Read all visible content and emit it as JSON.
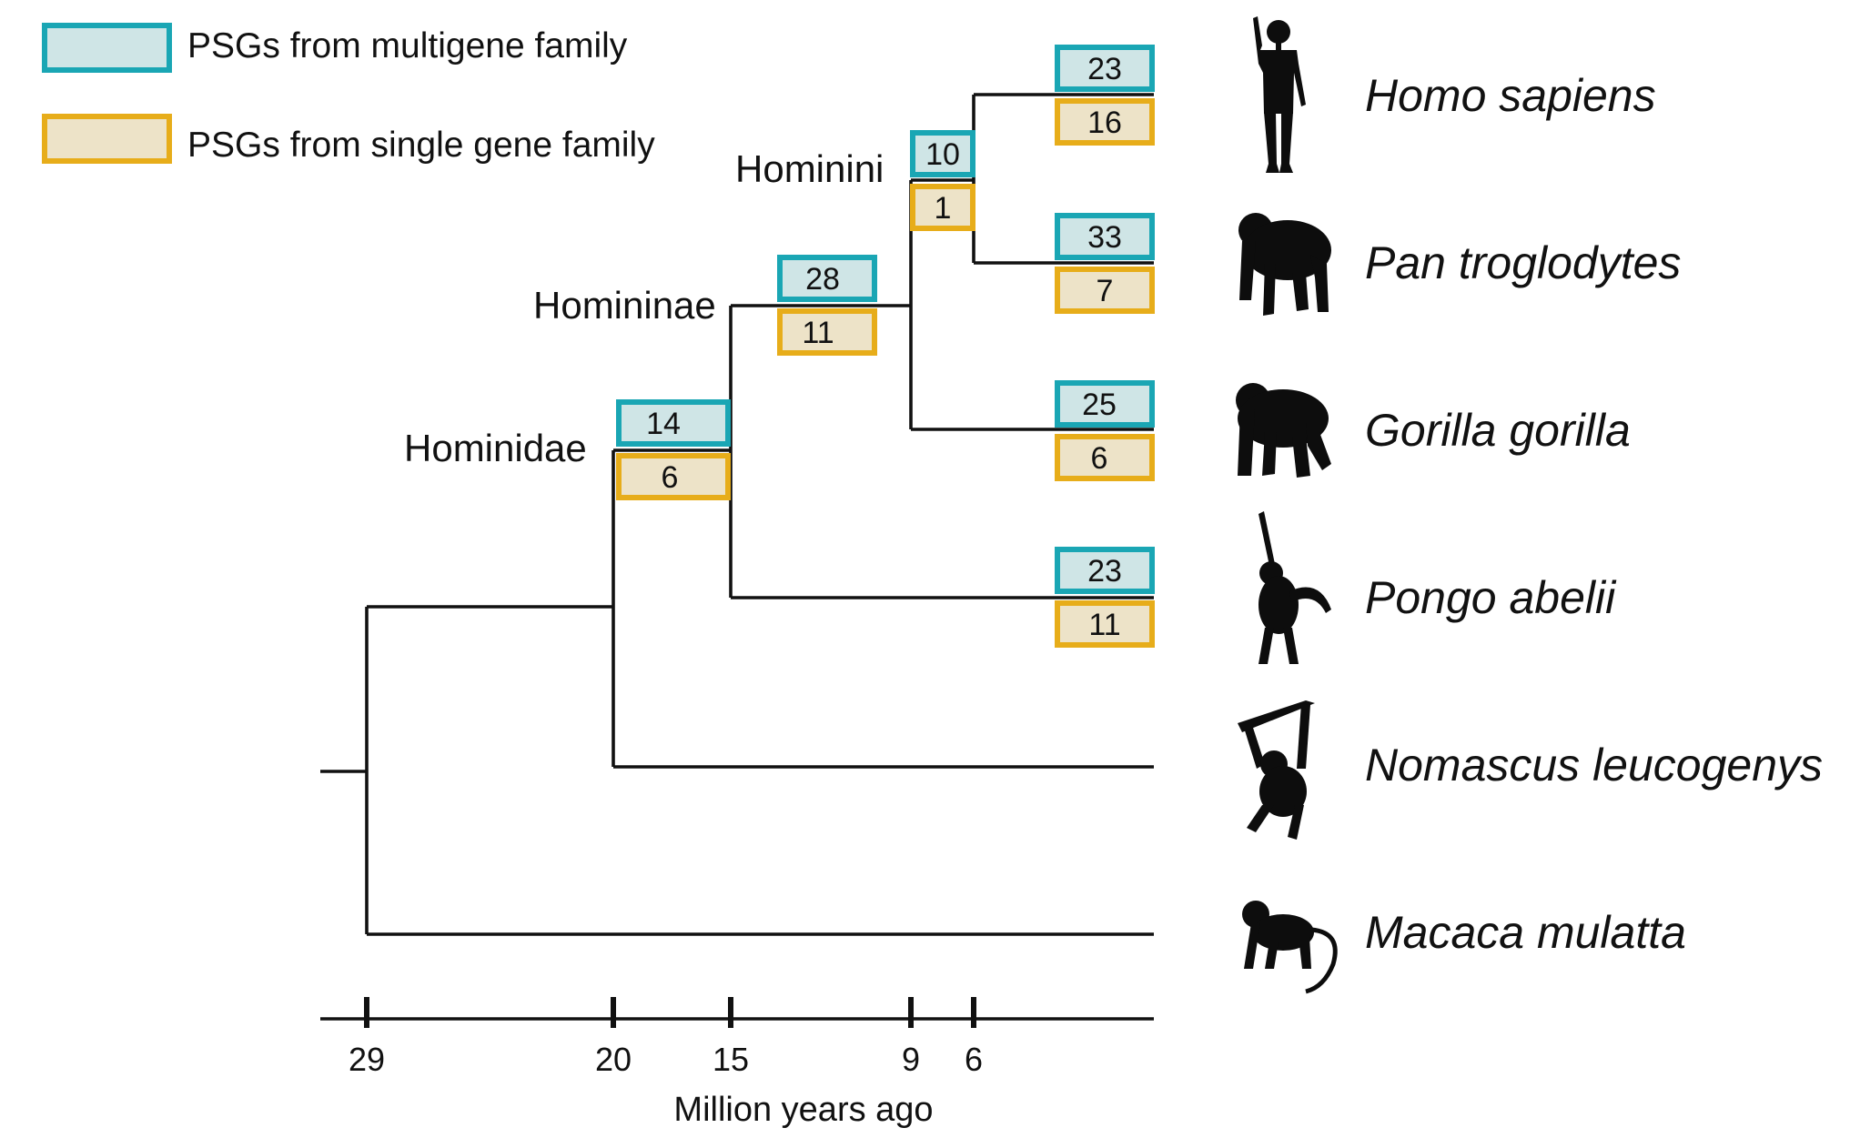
{
  "colors": {
    "multigene_border": "#1aa6b4",
    "multigene_fill": "#cfe5e6",
    "single_border": "#e7ad1a",
    "single_fill": "#ede3c8",
    "line": "#111111"
  },
  "legend": {
    "multigene": "PSGs from multigene family",
    "single": "PSGs from single gene family"
  },
  "clades": {
    "hominini": "Hominini",
    "homininae": "Homininae",
    "hominidae": "Hominidae"
  },
  "species": [
    {
      "name": "Homo sapiens",
      "icon": "human-icon",
      "multigene": "23",
      "single": "16"
    },
    {
      "name": "Pan troglodytes",
      "icon": "chimpanzee-icon",
      "multigene": "33",
      "single": "7"
    },
    {
      "name": "Gorilla gorilla",
      "icon": "gorilla-icon",
      "multigene": "25",
      "single": "6"
    },
    {
      "name": "Pongo abelii",
      "icon": "orangutan-icon",
      "multigene": "23",
      "single": "11"
    },
    {
      "name": "Nomascus leucogenys",
      "icon": "gibbon-icon"
    },
    {
      "name": "Macaca mulatta",
      "icon": "macaque-icon"
    }
  ],
  "node_counts": {
    "hominini": {
      "multigene": "10",
      "single": "1"
    },
    "homininae": {
      "multigene": "28",
      "single": "11"
    },
    "hominidae": {
      "multigene": "14",
      "single": "6"
    }
  },
  "axis": {
    "title": "Million years ago",
    "ticks": [
      "29",
      "20",
      "15",
      "9",
      "6"
    ]
  }
}
